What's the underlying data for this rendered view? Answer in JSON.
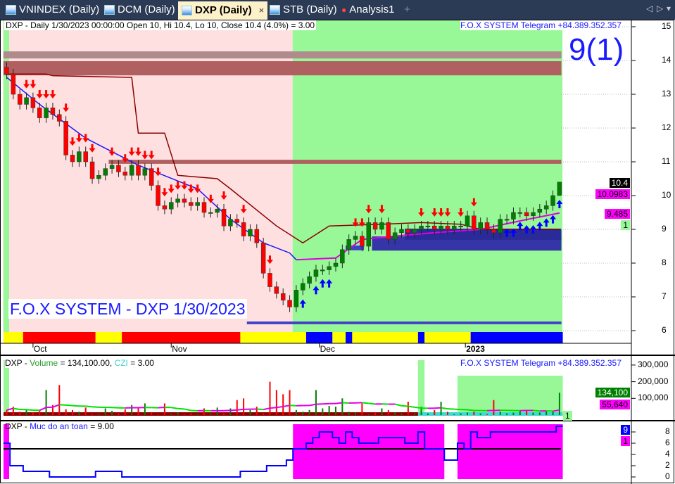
{
  "tabs": [
    {
      "label": "VNINDEX (Daily)",
      "active": false
    },
    {
      "label": "DCM (Daily)",
      "active": false
    },
    {
      "label": "DXP (Daily)",
      "active": true
    },
    {
      "label": "STB (Daily)",
      "active": false
    },
    {
      "label": "Analysis1",
      "active": false
    }
  ],
  "tab_close": "×",
  "tab_add": "+",
  "nav": {
    "left": "◁",
    "right": "▷",
    "menu": "▾"
  },
  "price_pane": {
    "header": "DXP - Daily 1/30/2023 00:00:00 Open 10, Hi 10.4, Lo 10, Close 10.4 (4.0%)   = 3.00",
    "telegram": "F.O.X SYSTEM Telegram +84.389.352.357",
    "watermark": "F.O.X SYSTEM - DXP 1/30/2023",
    "big_label": "9(1)",
    "tags": [
      {
        "text": "10.4",
        "bg": "#000000",
        "fg": "#ffffff"
      },
      {
        "text": "10.0983",
        "bg": "#ff00ff",
        "fg": "#000000"
      },
      {
        "text": "9.485",
        "bg": "#ff00ff",
        "fg": "#000000"
      },
      {
        "text": "1",
        "bg": "#98f898",
        "fg": "#000000"
      }
    ]
  },
  "volume_pane": {
    "title_prefix": "DXP - ",
    "title_volume": "Volume",
    "title_mid": " = 134,100.00, ",
    "title_czi": "CZI",
    "title_end": " = 3.00",
    "telegram": "F.O.X SYSTEM Telegram +84.389.352.357",
    "tags": [
      {
        "text": "134,100",
        "bg": "#008000",
        "fg": "#ffffff"
      },
      {
        "text": "55,640",
        "bg": "#ff00ff",
        "fg": "#000000"
      },
      {
        "text": "1",
        "bg": "#98f898",
        "fg": "#000000"
      }
    ]
  },
  "safety_pane": {
    "title_prefix": "DXP - ",
    "title_name": "Muc do an toan",
    "title_end": " = 9.00",
    "tags": [
      {
        "text": "9",
        "bg": "#0000ff",
        "fg": "#ffffff"
      },
      {
        "text": "1",
        "bg": "#ff00ff",
        "fg": "#000000"
      }
    ]
  },
  "colors": {
    "bear_zone": "#ffe0e0",
    "bull_zone": "#98f898",
    "up_candle": "#008000",
    "down_candle": "#ff0000",
    "blue_line": "#1a1aff",
    "resistance_line": "#8b0000",
    "magenta_line": "#e000e0",
    "safety_zone": "#ff00ff",
    "text_blue": "#1a1aff"
  },
  "chart_data": {
    "type": "candlestick",
    "symbol": "DXP",
    "interval": "Daily",
    "price_axis": {
      "ticks": [
        15,
        14,
        13,
        12,
        11,
        10,
        9,
        8,
        7,
        6
      ],
      "range": [
        5.7,
        15.2
      ]
    },
    "x_labels": [
      {
        "label": "Oct",
        "bar": 4
      },
      {
        "label": "Nov",
        "bar": 25
      },
      {
        "label": "Dec",
        "bar": 47.5
      },
      {
        "label": "2023",
        "bar": 69.7
      }
    ],
    "close": [
      13.6,
      13.0,
      12.7,
      12.9,
      12.6,
      12.3,
      12.6,
      12.4,
      12.2,
      11.2,
      11.0,
      11.3,
      11.0,
      10.5,
      10.6,
      10.8,
      10.9,
      10.7,
      10.6,
      10.9,
      10.6,
      10.8,
      10.3,
      9.7,
      9.6,
      9.8,
      9.9,
      9.8,
      9.7,
      9.8,
      9.5,
      9.5,
      9.6,
      9.1,
      9.3,
      9.2,
      8.8,
      9.0,
      8.6,
      7.7,
      7.3,
      7.1,
      6.9,
      6.7,
      7.2,
      7.4,
      7.6,
      7.8,
      7.8,
      7.9,
      8.0,
      8.4,
      8.7,
      8.8,
      8.5,
      9.2,
      9.0,
      9.2,
      8.7,
      8.9,
      9.0,
      8.9,
      9.0,
      9.1,
      9.1,
      9.0,
      9.1,
      9.0,
      9.1,
      9.1,
      9.4,
      9.0,
      9.2,
      9.0,
      8.9,
      9.3,
      9.3,
      9.5,
      9.5,
      9.4,
      9.5,
      9.6,
      9.7,
      10.0,
      10.4
    ],
    "last_bar": {
      "open": 10,
      "high": 10.4,
      "low": 10,
      "close": 10.4
    },
    "zones": [
      {
        "from": 0,
        "to": 43,
        "kind": "bear"
      },
      {
        "from": 44,
        "to": 84,
        "kind": "bull"
      }
    ],
    "sell_arrows": [
      3,
      4,
      5,
      6,
      7,
      9,
      10,
      11,
      12,
      13,
      16,
      18,
      19,
      20,
      21,
      22,
      23,
      24,
      25,
      26,
      27,
      28,
      29,
      31,
      33,
      36,
      40,
      53,
      54,
      55,
      57,
      63,
      65,
      66,
      67,
      69,
      71
    ],
    "buy_arrows": [
      45,
      47,
      48,
      49,
      76,
      77,
      78,
      79,
      80,
      81,
      82,
      83,
      84
    ],
    "blue_line": [
      [
        0,
        13.5
      ],
      [
        5,
        12.7
      ],
      [
        12,
        11.7
      ],
      [
        20,
        10.9
      ],
      [
        29,
        10.2
      ],
      [
        34,
        9.3
      ],
      [
        39,
        8.6
      ],
      [
        43,
        8.3
      ],
      [
        44,
        8.1
      ]
    ],
    "resistance_line": [
      [
        0,
        13.6
      ],
      [
        6,
        13.6
      ],
      [
        7,
        13.55
      ],
      [
        19,
        13.5
      ],
      [
        20,
        11.85
      ],
      [
        24,
        11.85
      ],
      [
        26,
        10.6
      ],
      [
        32,
        10.5
      ],
      [
        34,
        10.2
      ],
      [
        41,
        9.1
      ],
      [
        45,
        8.6
      ],
      [
        49,
        9.1
      ],
      [
        57,
        9.15
      ],
      [
        63,
        9.2
      ],
      [
        69,
        9.15
      ],
      [
        72,
        9.0
      ],
      [
        84,
        9.0
      ]
    ],
    "magenta_line": [
      [
        44,
        8.1
      ],
      [
        50,
        8.15
      ],
      [
        54,
        8.7
      ],
      [
        59,
        8.8
      ],
      [
        65,
        8.9
      ],
      [
        72,
        9.0
      ],
      [
        78,
        9.25
      ],
      [
        84,
        9.485
      ]
    ],
    "bands": [
      {
        "from": 0,
        "to": 84,
        "low": 14.06,
        "high": 14.27,
        "color": "#b08b8b"
      },
      {
        "from": 0,
        "to": 84,
        "low": 13.56,
        "high": 13.98,
        "color": "#b06060"
      },
      {
        "from": 16,
        "to": 84,
        "low": 10.94,
        "high": 11.06,
        "color": "#b06060"
      },
      {
        "from": 37,
        "to": 84,
        "low": 6.19,
        "high": 6.27,
        "color": "#4040c8"
      },
      {
        "from": 56,
        "to": 84,
        "low": 8.37,
        "high": 8.79,
        "color": "#3535a8"
      },
      {
        "from": 61,
        "to": 84,
        "low": 8.69,
        "high": 9.02,
        "color": "#2a2a98"
      },
      {
        "from": 52,
        "to": 54,
        "low": 8.38,
        "high": 8.52,
        "color": "#4040c8"
      }
    ],
    "trend_strip": [
      {
        "from": 0,
        "to": 2,
        "color": "#ffff00"
      },
      {
        "from": 3,
        "to": 13,
        "color": "#ff0000"
      },
      {
        "from": 14,
        "to": 17,
        "color": "#ffff00"
      },
      {
        "from": 18,
        "to": 35,
        "color": "#ff0000"
      },
      {
        "from": 36,
        "to": 45,
        "color": "#ffff00"
      },
      {
        "from": 46,
        "to": 49,
        "color": "#0000ff"
      },
      {
        "from": 50,
        "to": 51,
        "color": "#ffff00"
      },
      {
        "from": 52,
        "to": 52,
        "color": "#0000ff"
      },
      {
        "from": 53,
        "to": 62,
        "color": "#ffff00"
      },
      {
        "from": 63,
        "to": 63,
        "color": "#0000ff"
      },
      {
        "from": 64,
        "to": 70,
        "color": "#ffff00"
      },
      {
        "from": 71,
        "to": 84,
        "color": "#0000ff"
      }
    ],
    "volume": {
      "axis_ticks": [
        "300,000",
        "200,000",
        "100,000"
      ],
      "axis_values": [
        300000,
        200000,
        100000
      ],
      "values": [
        30000,
        50000,
        20000,
        30000,
        15000,
        25000,
        150000,
        60000,
        180000,
        35000,
        30000,
        20000,
        45000,
        5000,
        8000,
        40000,
        25000,
        10000,
        35000,
        60000,
        40000,
        70000,
        15000,
        5000,
        70000,
        8000,
        15000,
        5000,
        10000,
        5000,
        40000,
        10000,
        45000,
        10000,
        40000,
        90000,
        100000,
        30000,
        50000,
        10000,
        200000,
        150000,
        125000,
        150000,
        30000,
        20000,
        30000,
        150000,
        40000,
        55000,
        50000,
        100000,
        20000,
        15000,
        70000,
        5000,
        15000,
        40000,
        30000,
        15000,
        10000,
        80000,
        10000,
        50000,
        10000,
        30000,
        80000,
        20000,
        5000,
        10000,
        15000,
        20000,
        10000,
        5000,
        90000,
        20000,
        10000,
        15000,
        25000,
        30000,
        15000,
        15000,
        25000,
        20000,
        134100
      ],
      "highlight_zones": [
        {
          "from": 0,
          "to": 0
        },
        {
          "from": 63,
          "to": 63
        },
        {
          "from": 69,
          "to": 84
        }
      ]
    },
    "safety": {
      "axis_ticks": [
        8,
        6,
        4,
        2,
        0
      ],
      "threshold": 5,
      "values": [
        6,
        2,
        2,
        1,
        1,
        1,
        1,
        0,
        0,
        0,
        0,
        0,
        0,
        0,
        1,
        1,
        1,
        1,
        0,
        0,
        0,
        0,
        0,
        0,
        0,
        0,
        0,
        0,
        0,
        0,
        0,
        0,
        0,
        0,
        0,
        0,
        1,
        1,
        1,
        1,
        2,
        2,
        2,
        3,
        5,
        5,
        6,
        7,
        8,
        8,
        7,
        6,
        8,
        7,
        6,
        6,
        6,
        7,
        7,
        7,
        7,
        6,
        6,
        8,
        5,
        5,
        5,
        3,
        3,
        6,
        5,
        8,
        7,
        7,
        8,
        8,
        8,
        8,
        8,
        8,
        8,
        8,
        8,
        8,
        9
      ],
      "zones": [
        {
          "from": 0,
          "to": 0
        },
        {
          "from": 44,
          "to": 66
        },
        {
          "from": 69,
          "to": 84
        }
      ]
    }
  }
}
